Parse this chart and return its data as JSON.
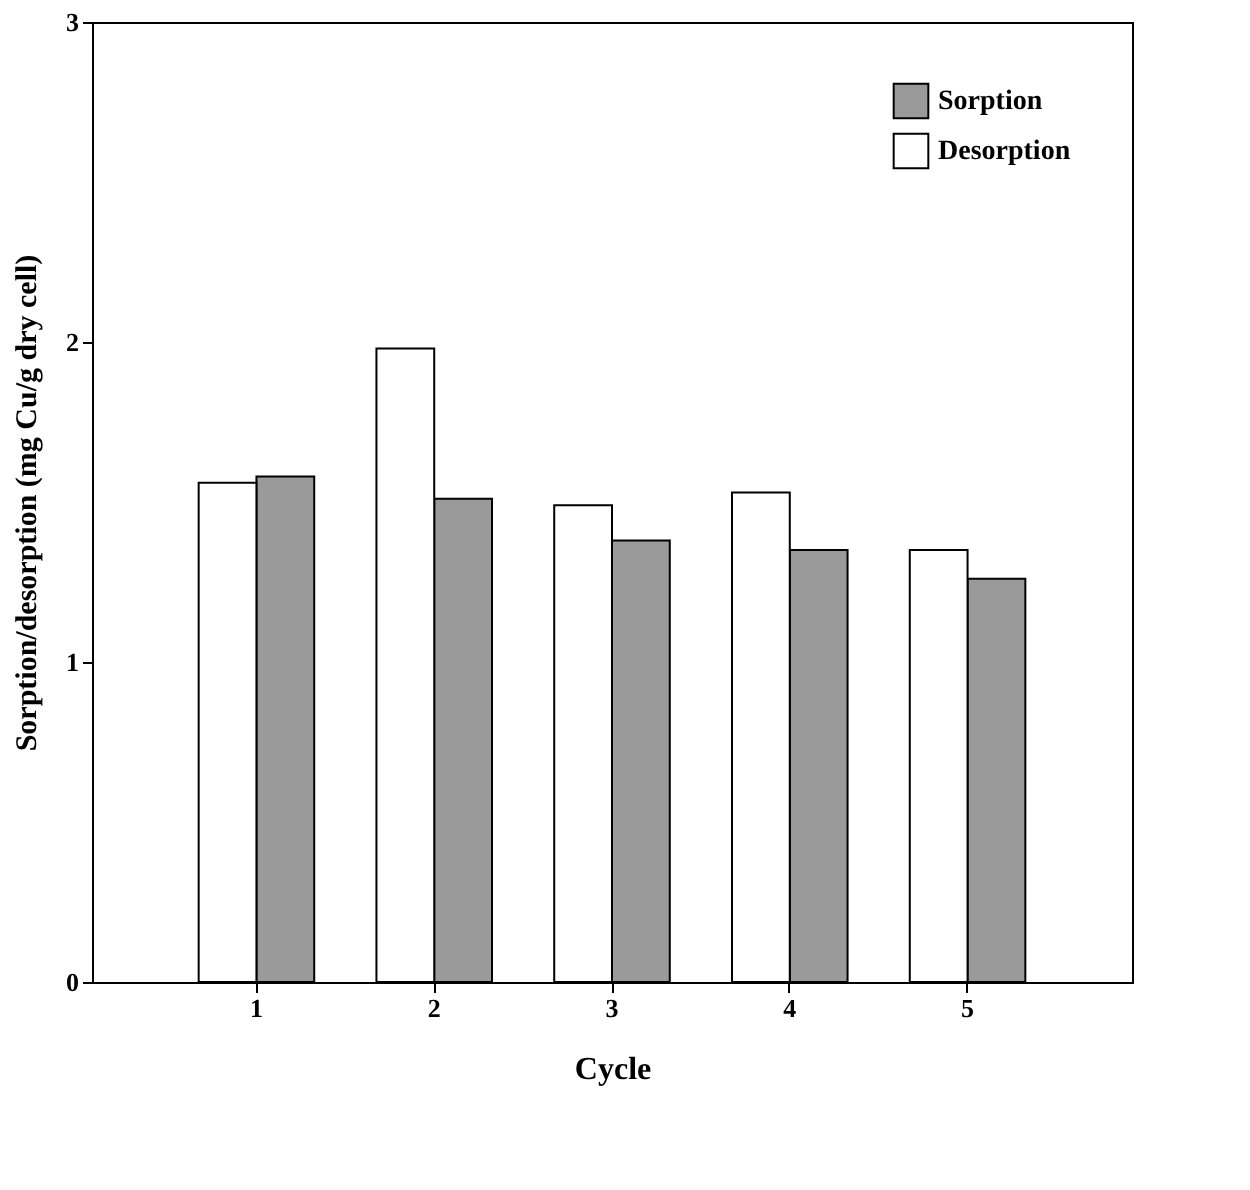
{
  "chart_data": {
    "type": "bar",
    "xlabel": "Cycle",
    "ylabel": "Sorption/desorption (mg Cu/g dry cell)",
    "categories": [
      "1",
      "2",
      "3",
      "4",
      "5"
    ],
    "series": [
      {
        "name": "Sorption",
        "color": "#9a9a9a",
        "values": [
          1.58,
          1.51,
          1.38,
          1.35,
          1.26
        ]
      },
      {
        "name": "Desorption",
        "color": "#ffffff",
        "values": [
          1.56,
          1.98,
          1.49,
          1.53,
          1.35
        ]
      }
    ],
    "ylim": [
      0,
      3
    ],
    "yticks": [
      0,
      1,
      2,
      3
    ],
    "grid": false,
    "legend": "top right"
  }
}
